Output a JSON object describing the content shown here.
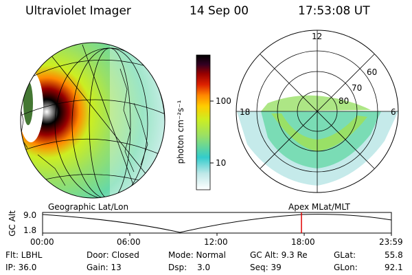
{
  "header": {
    "instrument": "Ultraviolet Imager",
    "date": "14 Sep 00",
    "time": "17:53:08 UT"
  },
  "colorbar": {
    "unit": "photon cm⁻²s⁻¹",
    "ticks": [
      "100",
      "10"
    ]
  },
  "polar_plot": {
    "clock_labels": [
      "12",
      "18",
      "6"
    ],
    "lat_labels": [
      "60",
      "70",
      "80"
    ]
  },
  "views": {
    "left": "Geographic Lat/Lon",
    "right": "Apex MLat/MLT"
  },
  "orbit_plot": {
    "ylabel": "GC Alt",
    "y_ticks": [
      "9.0",
      "1.8"
    ],
    "x_ticks": [
      "00:00",
      "06:00",
      "12:00",
      "18:00",
      "23:59"
    ],
    "marker_time": "17:53",
    "marker_color": "#e00000"
  },
  "info": {
    "filter": "Flt: LBHL",
    "ip": "IP: 36.0",
    "door": "Door: Closed",
    "gain": "Gain: 13",
    "mode": "Mode: Normal",
    "dsp_label": "Dsp:",
    "dsp_value": "3.0",
    "gc_alt": "GC Alt: 9.3 Re",
    "seq": "Seq: 39",
    "glat_label": "GLat:",
    "glat_value": "55.8",
    "glon_label": "GLon:",
    "glon_value": "92.1"
  },
  "colors": {
    "earth_outline": "#000000",
    "palette": [
      "#ffffff",
      "#bfe8e8",
      "#33cccc",
      "#99e066",
      "#ccee22",
      "#ffcc00",
      "#ff8800",
      "#dd2200",
      "#990000",
      "#330022",
      "#000000"
    ]
  }
}
